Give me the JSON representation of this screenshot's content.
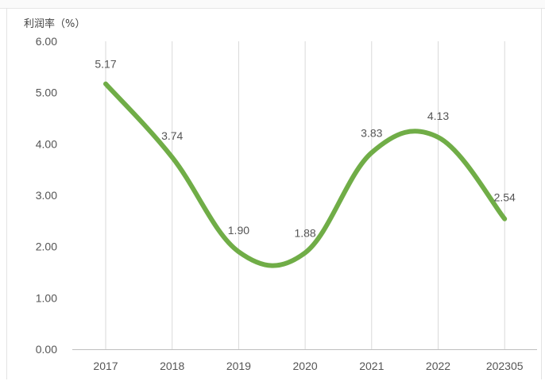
{
  "chart_data": {
    "type": "line",
    "ylabel": "利润率（%）",
    "categories": [
      "2017",
      "2018",
      "2019",
      "2020",
      "2021",
      "2022",
      "202305"
    ],
    "values": [
      5.17,
      3.74,
      1.9,
      1.88,
      3.83,
      4.13,
      2.54
    ],
    "value_labels": [
      "5.17",
      "3.74",
      "1.90",
      "1.88",
      "3.83",
      "4.13",
      "2.54"
    ],
    "ylim": [
      0,
      6
    ],
    "yticks": [
      "0.00",
      "1.00",
      "2.00",
      "3.00",
      "4.00",
      "5.00",
      "6.00"
    ],
    "grid": "vertical",
    "smooth": true,
    "line_color": "#70ad47"
  }
}
